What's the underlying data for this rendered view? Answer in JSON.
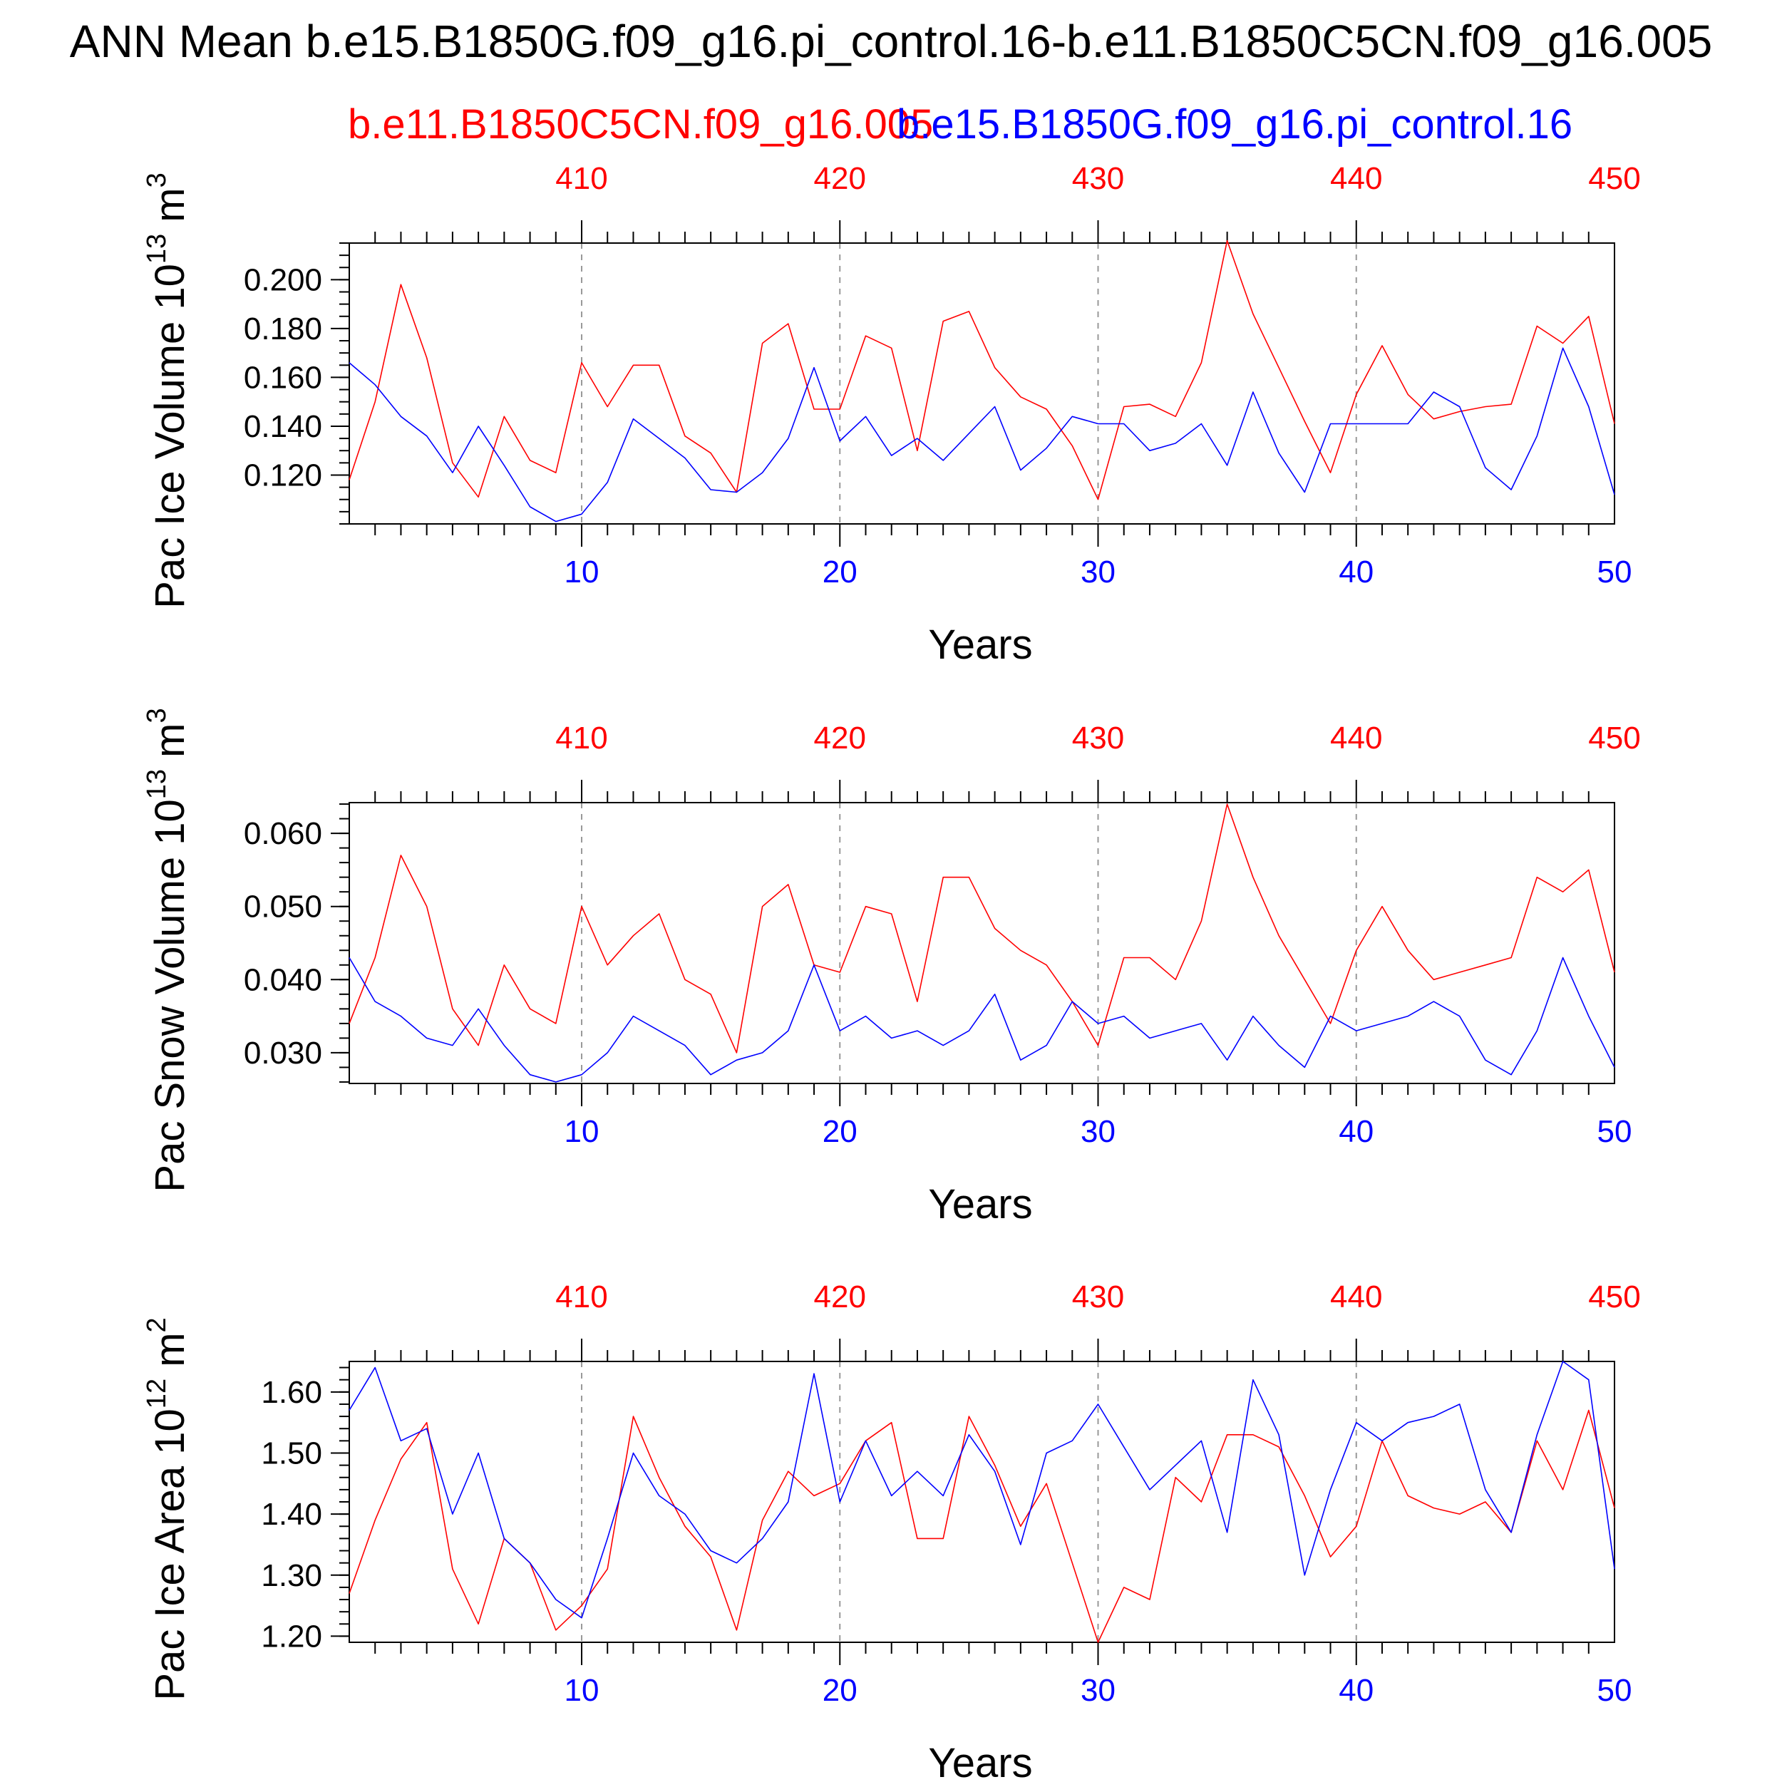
{
  "title": "ANN Mean b.e15.B1850G.f09_g16.pi_control.16-b.e11.B1850C5CN.f09_g16.005",
  "legend": {
    "case1": "b.e11.B1850C5CN.f09_g16.005",
    "case2": "b.e15.B1850G.f09_g16.pi_control.16"
  },
  "colors": {
    "case1": "#ff0000",
    "case2": "#0000ff",
    "axis": "#000000",
    "grid": "#999999"
  },
  "chart_data": [
    {
      "type": "line",
      "ylabel_main": "Pac Ice Volume 10",
      "ylabel_exp": "13",
      "ylabel_unit": "m",
      "ylabel_unit_exp": "3",
      "xlabel": "Years",
      "xlim": [
        1,
        50
      ],
      "ylim": [
        0.1,
        0.215
      ],
      "yticks": [
        0.12,
        0.14,
        0.16,
        0.18,
        0.2
      ],
      "yticklabels": [
        "0.120",
        "0.140",
        "0.160",
        "0.180",
        "0.200"
      ],
      "yminor": 0.005,
      "xticks_bottom": [
        10,
        20,
        30,
        40,
        50
      ],
      "xticklabels_bottom": [
        "10",
        "20",
        "30",
        "40",
        "50"
      ],
      "xticklabels_top": [
        "410",
        "420",
        "430",
        "440",
        "450"
      ],
      "x": [
        1,
        2,
        3,
        4,
        5,
        6,
        7,
        8,
        9,
        10,
        11,
        12,
        13,
        14,
        15,
        16,
        17,
        18,
        19,
        20,
        21,
        22,
        23,
        24,
        25,
        26,
        27,
        28,
        29,
        30,
        31,
        32,
        33,
        34,
        35,
        36,
        37,
        38,
        39,
        40,
        41,
        42,
        43,
        44,
        45,
        46,
        47,
        48,
        49,
        50
      ],
      "series": [
        {
          "name": "b.e11.B1850C5CN.f09_g16.005",
          "color": "#ff0000",
          "values": [
            0.118,
            0.15,
            0.198,
            0.168,
            0.125,
            0.111,
            0.144,
            0.126,
            0.121,
            0.166,
            0.148,
            0.165,
            0.165,
            0.136,
            0.129,
            0.113,
            0.174,
            0.182,
            0.147,
            0.147,
            0.177,
            0.172,
            0.13,
            0.183,
            0.187,
            0.164,
            0.152,
            0.147,
            0.132,
            0.11,
            0.148,
            0.149,
            0.144,
            0.166,
            0.216,
            0.186,
            0.164,
            0.142,
            0.121,
            0.153,
            0.173,
            0.153,
            0.143,
            0.146,
            0.148,
            0.149,
            0.181,
            0.174,
            0.185,
            0.141
          ]
        },
        {
          "name": "b.e15.B1850G.f09_g16.pi_control.16",
          "color": "#0000ff",
          "values": [
            0.166,
            0.157,
            0.144,
            0.136,
            0.121,
            0.14,
            0.124,
            0.107,
            0.101,
            0.104,
            0.117,
            0.143,
            0.135,
            0.127,
            0.114,
            0.113,
            0.121,
            0.135,
            0.164,
            0.134,
            0.144,
            0.128,
            0.135,
            0.126,
            0.137,
            0.148,
            0.122,
            0.131,
            0.144,
            0.141,
            0.141,
            0.13,
            0.133,
            0.141,
            0.124,
            0.154,
            0.129,
            0.113,
            0.141,
            0.141,
            0.141,
            0.141,
            0.154,
            0.148,
            0.123,
            0.114,
            0.136,
            0.172,
            0.148,
            0.112
          ]
        }
      ]
    },
    {
      "type": "line",
      "ylabel_main": "Pac Snow Volume 10",
      "ylabel_exp": "13",
      "ylabel_unit": "m",
      "ylabel_unit_exp": "3",
      "xlabel": "Years",
      "xlim": [
        1,
        50
      ],
      "ylim": [
        0.0258,
        0.0642
      ],
      "yticks": [
        0.03,
        0.04,
        0.05,
        0.06
      ],
      "yticklabels": [
        "0.030",
        "0.040",
        "0.050",
        "0.060"
      ],
      "yminor": 0.002,
      "xticks_bottom": [
        10,
        20,
        30,
        40,
        50
      ],
      "xticklabels_bottom": [
        "10",
        "20",
        "30",
        "40",
        "50"
      ],
      "xticklabels_top": [
        "410",
        "420",
        "430",
        "440",
        "450"
      ],
      "x": [
        1,
        2,
        3,
        4,
        5,
        6,
        7,
        8,
        9,
        10,
        11,
        12,
        13,
        14,
        15,
        16,
        17,
        18,
        19,
        20,
        21,
        22,
        23,
        24,
        25,
        26,
        27,
        28,
        29,
        30,
        31,
        32,
        33,
        34,
        35,
        36,
        37,
        38,
        39,
        40,
        41,
        42,
        43,
        44,
        45,
        46,
        47,
        48,
        49,
        50
      ],
      "series": [
        {
          "name": "b.e11.B1850C5CN.f09_g16.005",
          "color": "#ff0000",
          "values": [
            0.034,
            0.043,
            0.057,
            0.05,
            0.036,
            0.031,
            0.042,
            0.036,
            0.034,
            0.05,
            0.042,
            0.046,
            0.049,
            0.04,
            0.038,
            0.03,
            0.05,
            0.053,
            0.042,
            0.041,
            0.05,
            0.049,
            0.037,
            0.054,
            0.054,
            0.047,
            0.044,
            0.042,
            0.037,
            0.031,
            0.043,
            0.043,
            0.04,
            0.048,
            0.064,
            0.054,
            0.046,
            0.04,
            0.034,
            0.044,
            0.05,
            0.044,
            0.04,
            0.041,
            0.042,
            0.043,
            0.054,
            0.052,
            0.055,
            0.041
          ]
        },
        {
          "name": "b.e15.B1850G.f09_g16.pi_control.16",
          "color": "#0000ff",
          "values": [
            0.043,
            0.037,
            0.035,
            0.032,
            0.031,
            0.036,
            0.031,
            0.027,
            0.026,
            0.027,
            0.03,
            0.035,
            0.033,
            0.031,
            0.027,
            0.029,
            0.03,
            0.033,
            0.042,
            0.033,
            0.035,
            0.032,
            0.033,
            0.031,
            0.033,
            0.038,
            0.029,
            0.031,
            0.037,
            0.034,
            0.035,
            0.032,
            0.033,
            0.034,
            0.029,
            0.035,
            0.031,
            0.028,
            0.035,
            0.033,
            0.034,
            0.035,
            0.037,
            0.035,
            0.029,
            0.027,
            0.033,
            0.043,
            0.035,
            0.028
          ]
        }
      ]
    },
    {
      "type": "line",
      "ylabel_main": "Pac Ice Area 10",
      "ylabel_exp": "12",
      "ylabel_unit": "m",
      "ylabel_unit_exp": "2",
      "xlabel": "Years",
      "xlim": [
        1,
        50
      ],
      "ylim": [
        1.19,
        1.65
      ],
      "yticks": [
        1.2,
        1.3,
        1.4,
        1.5,
        1.6
      ],
      "yticklabels": [
        "1.20",
        "1.30",
        "1.40",
        "1.50",
        "1.60"
      ],
      "yminor": 0.02,
      "xticks_bottom": [
        10,
        20,
        30,
        40,
        50
      ],
      "xticklabels_bottom": [
        "10",
        "20",
        "30",
        "40",
        "50"
      ],
      "xticklabels_top": [
        "410",
        "420",
        "430",
        "440",
        "450"
      ],
      "x": [
        1,
        2,
        3,
        4,
        5,
        6,
        7,
        8,
        9,
        10,
        11,
        12,
        13,
        14,
        15,
        16,
        17,
        18,
        19,
        20,
        21,
        22,
        23,
        24,
        25,
        26,
        27,
        28,
        29,
        30,
        31,
        32,
        33,
        34,
        35,
        36,
        37,
        38,
        39,
        40,
        41,
        42,
        43,
        44,
        45,
        46,
        47,
        48,
        49,
        50
      ],
      "series": [
        {
          "name": "b.e11.B1850C5CN.f09_g16.005",
          "color": "#ff0000",
          "values": [
            1.27,
            1.39,
            1.49,
            1.55,
            1.31,
            1.22,
            1.36,
            1.32,
            1.21,
            1.25,
            1.31,
            1.56,
            1.46,
            1.38,
            1.33,
            1.21,
            1.39,
            1.47,
            1.43,
            1.45,
            1.52,
            1.55,
            1.36,
            1.36,
            1.56,
            1.48,
            1.38,
            1.45,
            1.32,
            1.19,
            1.28,
            1.26,
            1.46,
            1.42,
            1.53,
            1.53,
            1.51,
            1.43,
            1.33,
            1.38,
            1.52,
            1.43,
            1.41,
            1.4,
            1.42,
            1.37,
            1.52,
            1.44,
            1.57,
            1.41
          ]
        },
        {
          "name": "b.e15.B1850G.f09_g16.pi_control.16",
          "color": "#0000ff",
          "values": [
            1.57,
            1.64,
            1.52,
            1.54,
            1.4,
            1.5,
            1.36,
            1.32,
            1.26,
            1.23,
            1.36,
            1.5,
            1.43,
            1.4,
            1.34,
            1.32,
            1.36,
            1.42,
            1.63,
            1.42,
            1.52,
            1.43,
            1.47,
            1.43,
            1.53,
            1.47,
            1.35,
            1.5,
            1.52,
            1.58,
            1.51,
            1.44,
            1.48,
            1.52,
            1.37,
            1.62,
            1.53,
            1.3,
            1.44,
            1.55,
            1.52,
            1.55,
            1.56,
            1.58,
            1.44,
            1.37,
            1.53,
            1.65,
            1.62,
            1.31
          ]
        }
      ]
    }
  ]
}
